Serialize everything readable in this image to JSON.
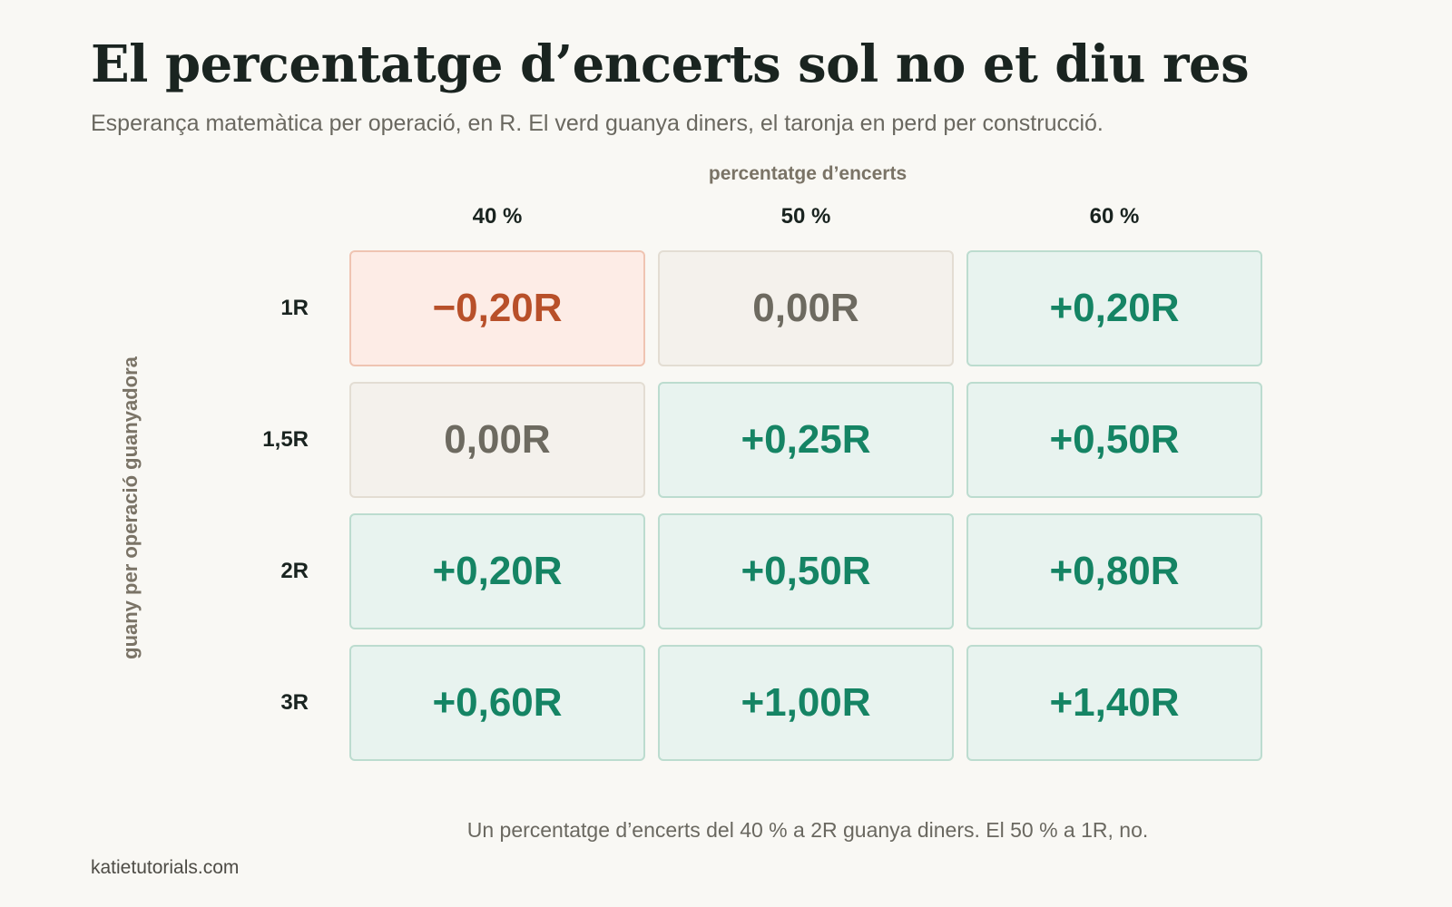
{
  "title": "El percentatge d’encerts sol no et diu res",
  "subtitle": "Esperança matemàtica per operació, en R. El verd guanya diners, el taronja en perd per construcció.",
  "note": "Un percentatge d’encerts del 40 % a 2R guanya diners. El 50 % a 1R, no.",
  "source": "katietutorials.com",
  "colors": {
    "negative": "#b8502a",
    "neutral": "#6d6a60",
    "positive": "#158464"
  },
  "chart_data": {
    "type": "heatmap",
    "xlabel": "percentatge d’encerts",
    "ylabel": "guany per operació guanyadora",
    "columns": [
      "40 %",
      "50 %",
      "60 %"
    ],
    "rows": [
      "1R",
      "1,5R",
      "2R",
      "3R"
    ],
    "values": [
      [
        -0.2,
        0.0,
        0.2
      ],
      [
        0.0,
        0.25,
        0.5
      ],
      [
        0.2,
        0.5,
        0.8
      ],
      [
        0.6,
        1.0,
        1.4
      ]
    ],
    "labels": [
      [
        "−0,20R",
        "0,00R",
        "+0,20R"
      ],
      [
        "0,00R",
        "+0,25R",
        "+0,50R"
      ],
      [
        "+0,20R",
        "+0,50R",
        "+0,80R"
      ],
      [
        "+0,60R",
        "+1,00R",
        "+1,40R"
      ]
    ]
  }
}
